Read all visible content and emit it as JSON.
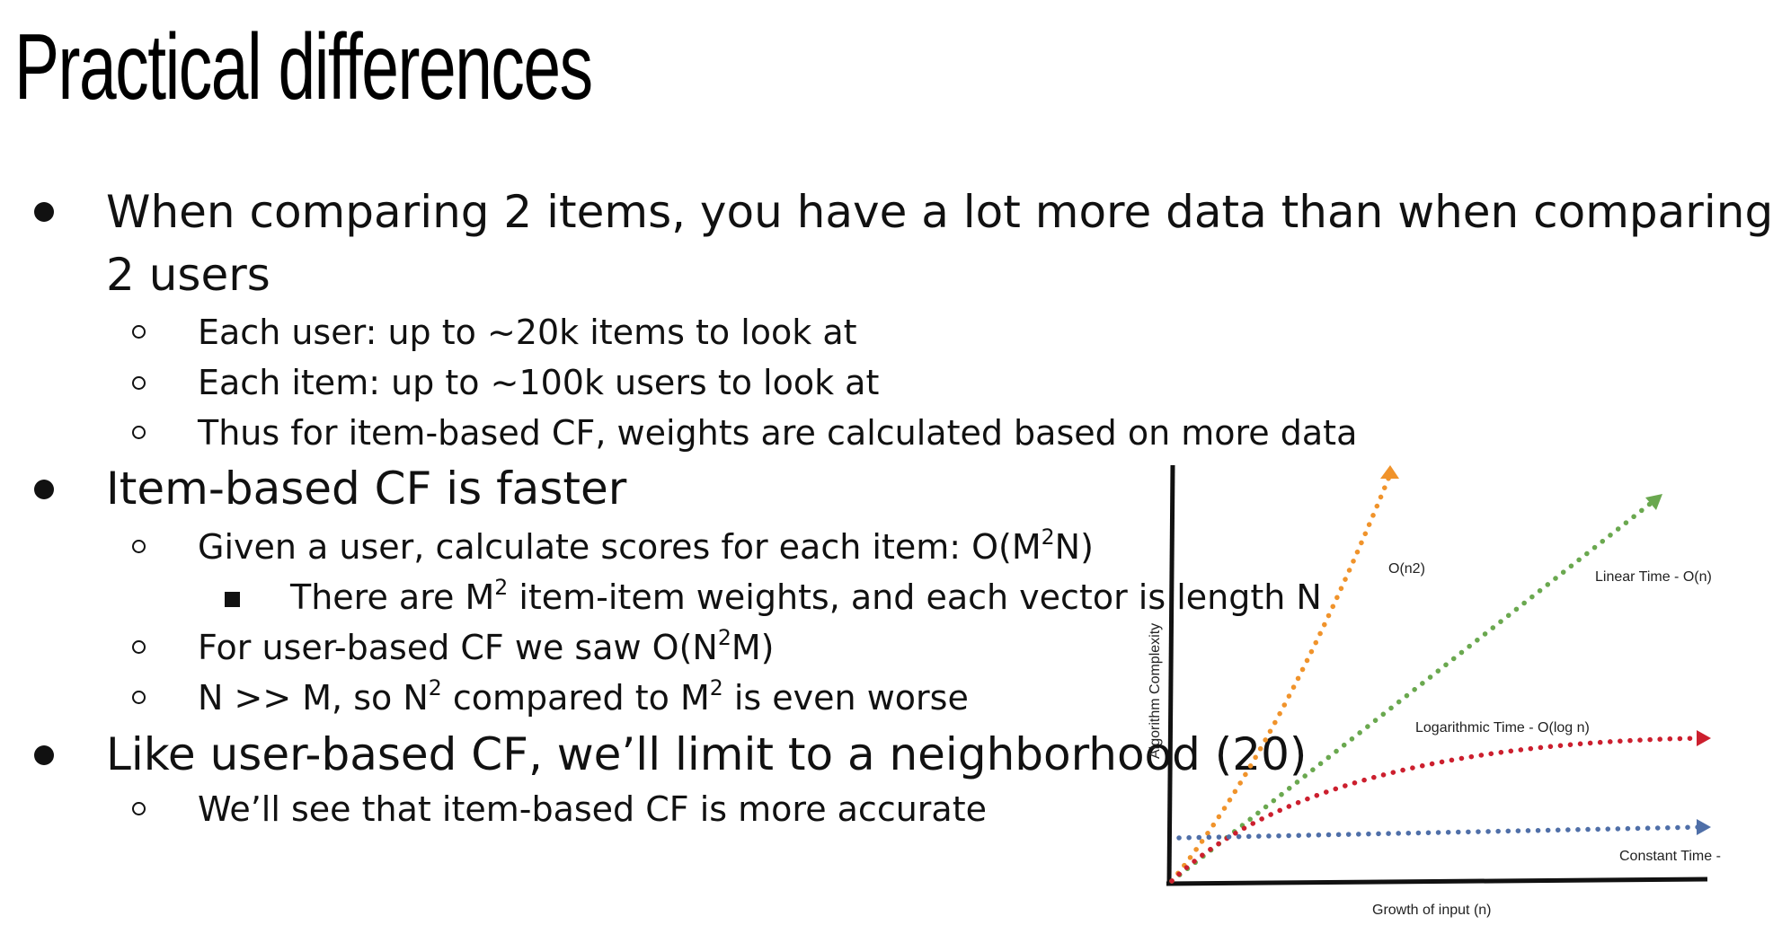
{
  "slide": {
    "title": "Practical differences",
    "bullets": {
      "b1_line1": "When comparing 2 items, you have a lot more data than when comparing",
      "b1_line2": "2 users",
      "b1_sub1": "Each user: up to ~20k items to look at",
      "b1_sub2": "Each item: up to ~100k users to look at",
      "b1_sub3": "Thus for item-based CF, weights are calculated based on more data",
      "b2": "Item-based CF is faster",
      "b2_sub1_pre": "Given a user, calculate scores for each item: O(M",
      "b2_sub1_sup": "2",
      "b2_sub1_post": "N)",
      "b2_sub1_detail_pre": "There are M",
      "b2_sub1_detail_sup": "2",
      "b2_sub1_detail_post": " item-item weights, and each vector is length N",
      "b2_sub2_pre": "For user-based CF we saw O(N",
      "b2_sub2_sup": "2",
      "b2_sub2_post": "M)",
      "b2_sub3_pre": "N >> M, so N",
      "b2_sub3_sup1": "2",
      "b2_sub3_mid": " compared to M",
      "b2_sub3_sup2": "2",
      "b2_sub3_post": " is even worse",
      "b3": "Like user-based CF, we’ll limit to a neighborhood (20)",
      "b3_sub1": "We’ll see that item-based CF is more accurate"
    }
  },
  "chart_data": {
    "type": "line",
    "xlabel": "Growth of input (n)",
    "ylabel": "Algorithm Complexity",
    "series": [
      {
        "name": "O(n2)",
        "color": "#f0932b"
      },
      {
        "name": "Linear Time - O(n)",
        "color": "#6aa84f"
      },
      {
        "name": "Logarithmic Time - O(log n)",
        "color": "#cc1f2e"
      },
      {
        "name": "Constant Time -",
        "color": "#4f6fa8"
      }
    ]
  }
}
